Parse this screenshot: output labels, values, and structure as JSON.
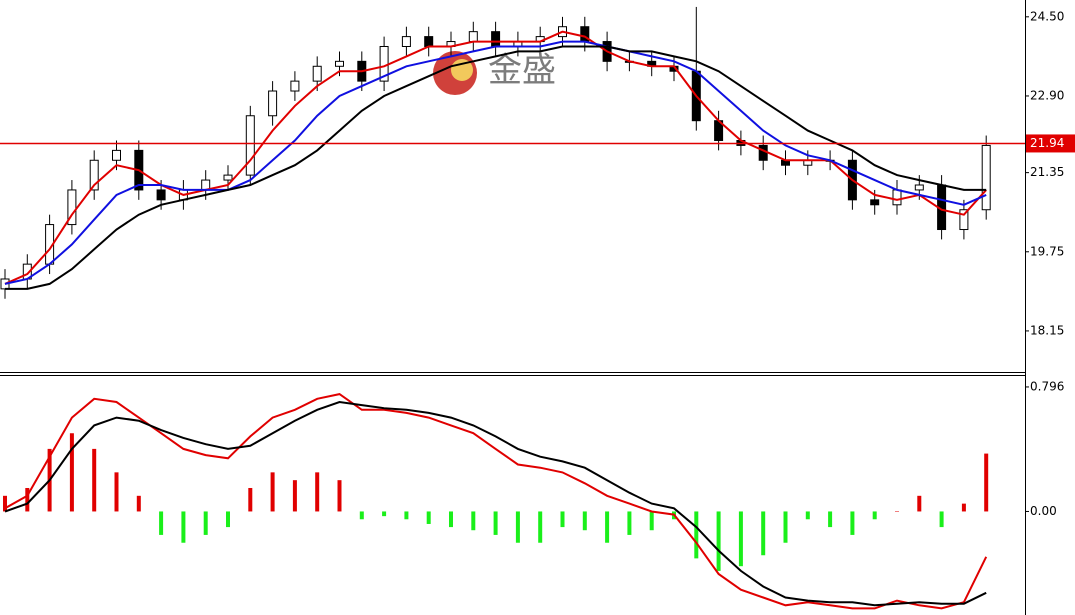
{
  "watermark": {
    "text": "金盛"
  },
  "chart_data": [
    {
      "type": "candlestick",
      "open": [
        19.0,
        19.2,
        19.5,
        20.3,
        21.0,
        21.6,
        21.8,
        21.0,
        20.8,
        21.0,
        21.2,
        21.3,
        22.5,
        23.0,
        23.2,
        23.5,
        23.6,
        23.2,
        23.9,
        24.1,
        23.9,
        24.0,
        24.2,
        23.9,
        24.0,
        24.1,
        24.3,
        24.0,
        23.6,
        23.6,
        23.5,
        23.4,
        22.4,
        22.0,
        21.9,
        21.6,
        21.5,
        21.6,
        21.6,
        20.8,
        20.7,
        21.0,
        21.1,
        20.2,
        20.6
      ],
      "high": [
        19.4,
        19.7,
        20.5,
        21.2,
        21.8,
        22.0,
        22.0,
        21.2,
        21.2,
        21.4,
        21.5,
        22.7,
        23.2,
        23.4,
        23.7,
        23.8,
        23.8,
        24.1,
        24.3,
        24.3,
        24.2,
        24.4,
        24.4,
        24.2,
        24.3,
        24.5,
        24.5,
        24.2,
        23.8,
        23.8,
        23.7,
        24.7,
        22.6,
        22.2,
        22.1,
        21.8,
        21.8,
        21.8,
        21.8,
        21.0,
        21.2,
        21.3,
        21.3,
        20.8,
        22.1
      ],
      "low": [
        18.8,
        19.0,
        19.3,
        20.1,
        20.8,
        21.4,
        20.8,
        20.6,
        20.6,
        20.8,
        21.0,
        21.1,
        22.3,
        22.8,
        23.0,
        23.3,
        23.0,
        23.0,
        23.7,
        23.7,
        23.7,
        23.8,
        23.7,
        23.7,
        23.8,
        23.9,
        23.8,
        23.4,
        23.4,
        23.3,
        23.2,
        22.2,
        21.8,
        21.7,
        21.4,
        21.3,
        21.3,
        21.4,
        20.6,
        20.5,
        20.5,
        20.8,
        20.0,
        20.0,
        20.4
      ],
      "close": [
        19.2,
        19.5,
        20.3,
        21.0,
        21.6,
        21.8,
        21.0,
        20.8,
        21.0,
        21.2,
        21.3,
        22.5,
        23.0,
        23.2,
        23.5,
        23.6,
        23.2,
        23.9,
        24.1,
        23.9,
        24.0,
        24.2,
        23.9,
        24.0,
        24.1,
        24.3,
        24.0,
        23.6,
        23.6,
        23.5,
        23.4,
        22.4,
        22.0,
        21.9,
        21.6,
        21.5,
        21.6,
        21.6,
        20.8,
        20.7,
        21.0,
        21.1,
        20.2,
        20.6,
        21.9
      ],
      "series": [
        {
          "color": "#e00000",
          "values": [
            19.1,
            19.3,
            19.8,
            20.5,
            21.1,
            21.5,
            21.4,
            21.1,
            20.9,
            21.0,
            21.1,
            21.6,
            22.2,
            22.7,
            23.1,
            23.4,
            23.4,
            23.5,
            23.7,
            23.9,
            23.9,
            24.0,
            24.0,
            24.0,
            24.0,
            24.2,
            24.1,
            23.8,
            23.6,
            23.5,
            23.5,
            22.9,
            22.4,
            22.0,
            21.8,
            21.6,
            21.6,
            21.6,
            21.2,
            20.9,
            20.8,
            20.9,
            20.6,
            20.5,
            21.0
          ]
        },
        {
          "color": "#1010e0",
          "values": [
            19.1,
            19.2,
            19.5,
            19.9,
            20.4,
            20.9,
            21.1,
            21.1,
            21.0,
            21.0,
            21.0,
            21.2,
            21.6,
            22.0,
            22.5,
            22.9,
            23.1,
            23.3,
            23.5,
            23.6,
            23.7,
            23.8,
            23.9,
            23.9,
            23.9,
            24.0,
            24.0,
            23.9,
            23.8,
            23.7,
            23.6,
            23.4,
            23.0,
            22.6,
            22.2,
            21.9,
            21.7,
            21.6,
            21.4,
            21.2,
            21.0,
            20.9,
            20.8,
            20.7,
            20.9
          ]
        },
        {
          "color": "#000000",
          "values": [
            19.0,
            19.0,
            19.1,
            19.4,
            19.8,
            20.2,
            20.5,
            20.7,
            20.8,
            20.9,
            21.0,
            21.1,
            21.3,
            21.5,
            21.8,
            22.2,
            22.6,
            22.9,
            23.1,
            23.3,
            23.5,
            23.6,
            23.7,
            23.8,
            23.8,
            23.9,
            23.9,
            23.9,
            23.8,
            23.8,
            23.7,
            23.6,
            23.4,
            23.1,
            22.8,
            22.5,
            22.2,
            22.0,
            21.8,
            21.5,
            21.3,
            21.2,
            21.1,
            21.0,
            21.0
          ]
        }
      ],
      "price_line": {
        "value": 21.94,
        "label": "21.94",
        "color": "#e00000"
      },
      "ylim": [
        17.36,
        24.84
      ],
      "yticks": [
        {
          "value": 24.5,
          "label": "24.50"
        },
        {
          "value": 22.9,
          "label": "22.90"
        },
        21.35,
        19.75,
        18.15
      ]
    },
    {
      "type": "macd",
      "histogram": {
        "up_color": "#e00000",
        "down_color": "#1aef1a",
        "values": [
          0.1,
          0.15,
          0.4,
          0.5,
          0.4,
          0.25,
          0.1,
          -0.15,
          -0.2,
          -0.15,
          -0.1,
          0.15,
          0.25,
          0.2,
          0.25,
          0.2,
          -0.05,
          -0.03,
          -0.05,
          -0.08,
          -0.1,
          -0.12,
          -0.15,
          -0.2,
          -0.2,
          -0.1,
          -0.12,
          -0.2,
          -0.15,
          -0.12,
          -0.05,
          -0.3,
          -0.38,
          -0.35,
          -0.28,
          -0.2,
          -0.05,
          -0.1,
          -0.15,
          -0.05,
          0.0,
          0.1,
          -0.1,
          0.05,
          0.37
        ]
      },
      "series": [
        {
          "color": "#e00000",
          "values": [
            0.02,
            0.1,
            0.35,
            0.6,
            0.72,
            0.7,
            0.6,
            0.5,
            0.4,
            0.36,
            0.34,
            0.48,
            0.6,
            0.65,
            0.72,
            0.75,
            0.65,
            0.65,
            0.63,
            0.6,
            0.55,
            0.5,
            0.4,
            0.3,
            0.28,
            0.25,
            0.18,
            0.1,
            0.05,
            0.0,
            -0.02,
            -0.2,
            -0.4,
            -0.5,
            -0.55,
            -0.6,
            -0.58,
            -0.6,
            -0.62,
            -0.62,
            -0.57,
            -0.6,
            -0.62,
            -0.58,
            -0.29
          ]
        },
        {
          "color": "#000000",
          "values": [
            0.0,
            0.05,
            0.2,
            0.4,
            0.55,
            0.6,
            0.58,
            0.52,
            0.47,
            0.43,
            0.4,
            0.42,
            0.5,
            0.58,
            0.65,
            0.7,
            0.68,
            0.66,
            0.65,
            0.63,
            0.6,
            0.55,
            0.48,
            0.4,
            0.35,
            0.32,
            0.28,
            0.2,
            0.12,
            0.05,
            0.02,
            -0.1,
            -0.25,
            -0.38,
            -0.48,
            -0.55,
            -0.57,
            -0.58,
            -0.58,
            -0.6,
            -0.59,
            -0.58,
            -0.59,
            -0.59,
            -0.52
          ]
        }
      ],
      "ylim": [
        -0.662,
        0.866
      ],
      "yticks": [
        0.796,
        {
          "value": 0,
          "label": "0.00"
        }
      ]
    }
  ]
}
